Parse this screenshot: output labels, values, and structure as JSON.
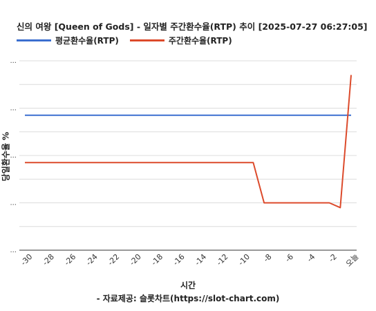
{
  "chart_data": {
    "type": "line",
    "title": "신의 여왕 [Queen of Gods] - 일자별 주간환수율(RTP) 추이 [2025-07-27 06:27:05]",
    "xlabel": "시간",
    "ylabel": "당일환수율 %",
    "credit": "- 자료제공: 슬롯차트(https://slot-chart.com)",
    "x_tick_labels": [
      "-30",
      "-28",
      "-26",
      "-24",
      "-22",
      "-20",
      "-18",
      "-16",
      "-14",
      "-12",
      "-10",
      "-8",
      "-6",
      "-4",
      "-2",
      "오늘"
    ],
    "y_tick_labels": [
      "...",
      "...",
      "...",
      "...",
      "..."
    ],
    "y_grid_units": [
      0,
      1,
      2,
      3,
      4,
      5,
      6,
      7,
      8
    ],
    "ylim": [
      0,
      8
    ],
    "xlim": [
      -30,
      0
    ],
    "x": [
      -30,
      -29,
      -28,
      -27,
      -26,
      -25,
      -24,
      -23,
      -22,
      -21,
      -20,
      -19,
      -18,
      -17,
      -16,
      -15,
      -14,
      -13,
      -12,
      -11,
      -10,
      -9,
      -8,
      -7,
      -6,
      -5,
      -4,
      -3,
      -2,
      -1,
      0
    ],
    "series": [
      {
        "name": "평균환수율(RTP)",
        "color": "#3b6fd0",
        "values": [
          5.7,
          5.7,
          5.7,
          5.7,
          5.7,
          5.7,
          5.7,
          5.7,
          5.7,
          5.7,
          5.7,
          5.7,
          5.7,
          5.7,
          5.7,
          5.7,
          5.7,
          5.7,
          5.7,
          5.7,
          5.7,
          5.7,
          5.7,
          5.7,
          5.7,
          5.7,
          5.7,
          5.7,
          5.7,
          5.7,
          5.7
        ]
      },
      {
        "name": "주간환수율(RTP)",
        "color": "#dc4a2b",
        "values": [
          3.7,
          3.7,
          3.7,
          3.7,
          3.7,
          3.7,
          3.7,
          3.7,
          3.7,
          3.7,
          3.7,
          3.7,
          3.7,
          3.7,
          3.7,
          3.7,
          3.7,
          3.7,
          3.7,
          3.7,
          3.7,
          3.7,
          2.0,
          2.0,
          2.0,
          2.0,
          2.0,
          2.0,
          2.0,
          1.8,
          7.4
        ]
      }
    ],
    "grid": true,
    "legend_position": "top-left"
  }
}
